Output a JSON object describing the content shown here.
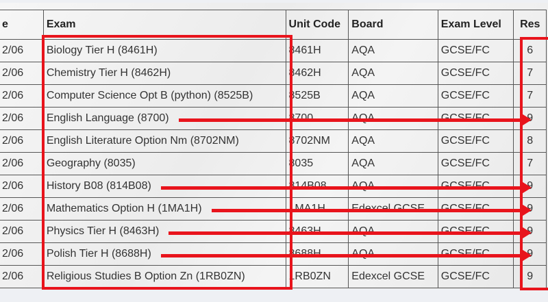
{
  "headers": [
    "e",
    "Exam",
    "Unit Code",
    "Board",
    "Exam Level",
    "Res"
  ],
  "rows": [
    [
      "2/06",
      "Biology Tier H (8461H)",
      "8461H",
      "AQA",
      "GCSE/FC",
      "6"
    ],
    [
      "2/06",
      "Chemistry Tier H (8462H)",
      "8462H",
      "AQA",
      "GCSE/FC",
      "7"
    ],
    [
      "2/06",
      "Computer Science Opt B (python) (8525B)",
      "8525B",
      "AQA",
      "GCSE/FC",
      "7"
    ],
    [
      "2/06",
      "English Language (8700)",
      "8700",
      "AQA",
      "GCSE/FC",
      "9"
    ],
    [
      "2/06",
      "English Literature Option Nm (8702NM)",
      "8702NM",
      "AQA",
      "GCSE/FC",
      "8"
    ],
    [
      "2/06",
      "Geography (8035)",
      "8035",
      "AQA",
      "GCSE/FC",
      "7"
    ],
    [
      "2/06",
      "History B08 (814B08)",
      "814B08",
      "AQA",
      "GCSE/FC",
      "9"
    ],
    [
      "2/06",
      "Mathematics Option H (1MA1H)",
      "1MA1H",
      "Edexcel GCSE",
      "GCSE/FC",
      "9"
    ],
    [
      "2/06",
      "Physics Tier H (8463H)",
      "8463H",
      "AQA",
      "GCSE/FC",
      "9"
    ],
    [
      "2/06",
      "Polish Tier H (8688H)",
      "8688H",
      "AQA",
      "GCSE/FC",
      "9"
    ],
    [
      "2/06",
      "Religious Studies B Option Zn (1RB0ZN)",
      "1RB0ZN",
      "Edexcel GCSE",
      "GCSE/FC",
      "9"
    ]
  ],
  "annotation_color": "#e8141c",
  "arrow_rows": [
    3,
    6,
    7,
    8,
    9
  ]
}
